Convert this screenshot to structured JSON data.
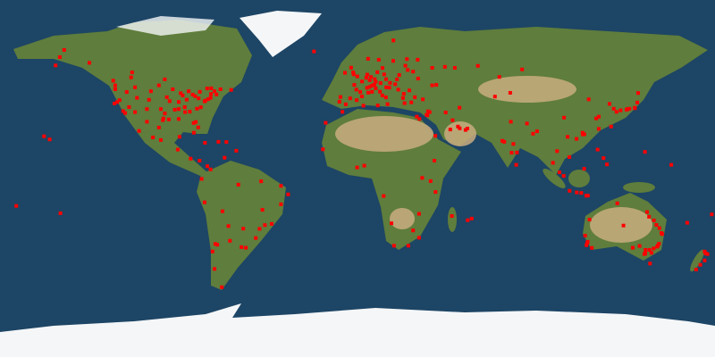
{
  "map": {
    "projection": "equirectangular",
    "colors": {
      "ocean": "#1d4565",
      "land": "#5f7d3c",
      "desert": "#c9ad7f",
      "ice": "#f4f6f8",
      "marker": "#ff0000"
    },
    "markers": [
      [
        -122,
        47
      ],
      [
        -122,
        45
      ],
      [
        -122.4,
        37.8
      ],
      [
        -121,
        38.5
      ],
      [
        -118,
        34
      ],
      [
        -117,
        33
      ],
      [
        -112,
        33.5
      ],
      [
        -111,
        40.7
      ],
      [
        -105,
        39.7
      ],
      [
        -106,
        35
      ],
      [
        -97,
        32.8
      ],
      [
        -95,
        29.8
      ],
      [
        -98,
        29.4
      ],
      [
        -97.7,
        30.3
      ],
      [
        -96,
        41
      ],
      [
        -94.6,
        39
      ],
      [
        -93,
        45
      ],
      [
        -90,
        38.6
      ],
      [
        -88,
        41.9
      ],
      [
        -87,
        36
      ],
      [
        -86,
        39.8
      ],
      [
        -84.4,
        33.7
      ],
      [
        -83,
        42.3
      ],
      [
        -81.7,
        41.5
      ],
      [
        -80,
        40.4
      ],
      [
        -80.2,
        25.8
      ],
      [
        -82.5,
        28
      ],
      [
        -81.4,
        28.5
      ],
      [
        -77,
        38.9
      ],
      [
        -76.6,
        39.3
      ],
      [
        -75.2,
        40
      ],
      [
        -74,
        40.7
      ],
      [
        -71,
        42.4
      ],
      [
        -73.8,
        42.6
      ],
      [
        -78.9,
        35.9
      ],
      [
        -80.8,
        35.2
      ],
      [
        -90,
        30
      ],
      [
        -90,
        35
      ],
      [
        -115,
        36
      ],
      [
        -119.8,
        39.5
      ],
      [
        -116.2,
        43.6
      ],
      [
        -112,
        46
      ],
      [
        -104,
        44
      ],
      [
        -100,
        47
      ],
      [
        -99,
        35
      ],
      [
        -92,
        34.7
      ],
      [
        -86.8,
        33.5
      ],
      [
        -85,
        44
      ],
      [
        -89,
        43
      ],
      [
        -72,
        44
      ],
      [
        -69,
        45
      ],
      [
        -79.4,
        43.7
      ],
      [
        -73.6,
        45.5
      ],
      [
        -123,
        49.3
      ],
      [
        -114,
        51
      ],
      [
        -113.5,
        53.5
      ],
      [
        -97,
        50
      ],
      [
        -75.7,
        45.4
      ],
      [
        -63.6,
        44.7
      ],
      [
        -100,
        25.7
      ],
      [
        -99,
        19.4
      ],
      [
        -103,
        20.7
      ],
      [
        -110,
        24
      ],
      [
        -106,
        28.6
      ],
      [
        -89.6,
        21
      ],
      [
        -157.8,
        21.3
      ],
      [
        -155,
        19.7
      ],
      [
        -149.9,
        61.2
      ],
      [
        -147.7,
        64.8
      ],
      [
        -135,
        58.3
      ],
      [
        -152,
        57
      ],
      [
        -82.4,
        23.1
      ],
      [
        -66,
        18.4
      ],
      [
        -70,
        18.5
      ],
      [
        -76.8,
        18
      ],
      [
        -90.5,
        14.6
      ],
      [
        -84,
        10
      ],
      [
        -79.5,
        9
      ],
      [
        -61,
        14
      ],
      [
        -74,
        4.6
      ],
      [
        -75.6,
        6.2
      ],
      [
        -66.9,
        10.5
      ],
      [
        -78.5,
        -0.2
      ],
      [
        -77,
        -12
      ],
      [
        -68,
        -16.5
      ],
      [
        -70.6,
        -33.4
      ],
      [
        -71.6,
        -33
      ],
      [
        -73,
        -36.8
      ],
      [
        -58.4,
        -34.6
      ],
      [
        -56.2,
        -34.9
      ],
      [
        -64.2,
        -31.4
      ],
      [
        -46.6,
        -23.5
      ],
      [
        -43.2,
        -22.9
      ],
      [
        -47.9,
        -15.8
      ],
      [
        -49.3,
        -25.4
      ],
      [
        -51.2,
        -30
      ],
      [
        -38.5,
        -13
      ],
      [
        -34.9,
        -8
      ],
      [
        -38.5,
        -3.7
      ],
      [
        -60,
        -3.1
      ],
      [
        -48.5,
        -1.4
      ],
      [
        -68.3,
        -54.8
      ],
      [
        -72,
        -45.6
      ],
      [
        -57.5,
        -25.3
      ],
      [
        -65,
        -24
      ],
      [
        -0.1,
        51.5
      ],
      [
        -2.2,
        53.5
      ],
      [
        -3.2,
        55.9
      ],
      [
        -6.3,
        53.3
      ],
      [
        -1.9,
        52.5
      ],
      [
        2.3,
        48.9
      ],
      [
        4.8,
        45.7
      ],
      [
        5.4,
        43.3
      ],
      [
        -1.6,
        47.2
      ],
      [
        -0.6,
        44.8
      ],
      [
        1.4,
        43.6
      ],
      [
        7.3,
        43.7
      ],
      [
        -3.7,
        40.4
      ],
      [
        2.2,
        41.4
      ],
      [
        -0.4,
        39.5
      ],
      [
        -5.9,
        37.4
      ],
      [
        -9.1,
        38.7
      ],
      [
        -8.6,
        41.1
      ],
      [
        4.9,
        52.4
      ],
      [
        4.4,
        50.8
      ],
      [
        6.1,
        49.6
      ],
      [
        6.8,
        51.2
      ],
      [
        8.7,
        50.1
      ],
      [
        11.6,
        48.1
      ],
      [
        13.4,
        52.5
      ],
      [
        10,
        53.6
      ],
      [
        9.2,
        48.8
      ],
      [
        8.5,
        47.4
      ],
      [
        6.1,
        46.2
      ],
      [
        7.4,
        46.9
      ],
      [
        16.4,
        48.2
      ],
      [
        14.4,
        50.1
      ],
      [
        19,
        47.5
      ],
      [
        21,
        52.2
      ],
      [
        19.9,
        50
      ],
      [
        12.5,
        41.9
      ],
      [
        9.2,
        45.5
      ],
      [
        11.3,
        43.8
      ],
      [
        14.3,
        40.9
      ],
      [
        15.1,
        37.5
      ],
      [
        23.7,
        38
      ],
      [
        22.9,
        40.6
      ],
      [
        26.1,
        44.4
      ],
      [
        23.3,
        42.7
      ],
      [
        20.5,
        44.8
      ],
      [
        16,
        45.8
      ],
      [
        14.5,
        46
      ],
      [
        12.6,
        55.7
      ],
      [
        10.7,
        59.9
      ],
      [
        18,
        59.3
      ],
      [
        24.9,
        60.2
      ],
      [
        24.1,
        56.9
      ],
      [
        25.3,
        54.7
      ],
      [
        30.5,
        50.4
      ],
      [
        37.6,
        55.8
      ],
      [
        30.3,
        59.9
      ],
      [
        28,
        53.9
      ],
      [
        28.9,
        41
      ],
      [
        32.9,
        39.9
      ],
      [
        27.1,
        38.4
      ],
      [
        -21.9,
        64.1
      ],
      [
        5.3,
        60.4
      ],
      [
        18.1,
        69.6
      ],
      [
        44,
        56.3
      ],
      [
        49,
        55.8
      ],
      [
        39.7,
        47.2
      ],
      [
        37.6,
        47
      ],
      [
        -16,
        28.1
      ],
      [
        35.2,
        31.8
      ],
      [
        34.8,
        32.1
      ],
      [
        35.5,
        33.9
      ],
      [
        36.3,
        33.5
      ],
      [
        31.2,
        30
      ],
      [
        29.9,
        31.2
      ],
      [
        55.3,
        25.2
      ],
      [
        54.4,
        24.5
      ],
      [
        51.5,
        25.3
      ],
      [
        50.6,
        26.2
      ],
      [
        47.9,
        29.4
      ],
      [
        46.7,
        24.7
      ],
      [
        39.2,
        21.5
      ],
      [
        51.4,
        35.7
      ],
      [
        44.4,
        33.3
      ],
      [
        -7.6,
        33.6
      ],
      [
        3,
        36.7
      ],
      [
        10.2,
        36.8
      ],
      [
        -17.4,
        14.7
      ],
      [
        3.4,
        6.5
      ],
      [
        -0.2,
        5.6
      ],
      [
        36.8,
        -1.3
      ],
      [
        39.3,
        -6.8
      ],
      [
        32.6,
        0.3
      ],
      [
        38.7,
        9
      ],
      [
        18.4,
        -33.9
      ],
      [
        28,
        -26.2
      ],
      [
        31,
        -29.9
      ],
      [
        25.6,
        -33.9
      ],
      [
        47.5,
        -18.9
      ],
      [
        57.5,
        -20.2
      ],
      [
        55.5,
        -21
      ],
      [
        17.1,
        -22.6
      ],
      [
        31,
        -17.8
      ],
      [
        13.2,
        -8.8
      ],
      [
        72.9,
        19
      ],
      [
        77.2,
        28.6
      ],
      [
        77.6,
        13
      ],
      [
        80.3,
        13.1
      ],
      [
        88.4,
        22.6
      ],
      [
        78.5,
        17.4
      ],
      [
        73.9,
        18.5
      ],
      [
        79.9,
        6.9
      ],
      [
        85.3,
        27.7
      ],
      [
        90.4,
        23.8
      ],
      [
        100.5,
        13.8
      ],
      [
        98.4,
        7.9
      ],
      [
        101.7,
        3.1
      ],
      [
        103.8,
        1.3
      ],
      [
        106.8,
        -6.2
      ],
      [
        115.2,
        -8.7
      ],
      [
        110.4,
        -7
      ],
      [
        112.7,
        -7.3
      ],
      [
        106.7,
        10.8
      ],
      [
        105.8,
        21
      ],
      [
        120.9,
        14.6
      ],
      [
        123.9,
        10.3
      ],
      [
        114.2,
        22.3
      ],
      [
        113.3,
        23.1
      ],
      [
        121.5,
        31.2
      ],
      [
        116.4,
        39.9
      ],
      [
        120.2,
        30.3
      ],
      [
        121.5,
        25
      ],
      [
        126.9,
        37.6
      ],
      [
        129,
        35.2
      ],
      [
        139.7,
        35.7
      ],
      [
        135.5,
        34.7
      ],
      [
        136.9,
        35.2
      ],
      [
        130.4,
        33.6
      ],
      [
        141.3,
        43.1
      ],
      [
        140.9,
        38.3
      ],
      [
        132.5,
        34.4
      ],
      [
        127.7,
        26.2
      ],
      [
        139.6,
        35.4
      ],
      [
        135.8,
        35
      ],
      [
        104,
        30.7
      ],
      [
        69.2,
        41.3
      ],
      [
        76.9,
        43.2
      ],
      [
        71.4,
        51.2
      ],
      [
        82.9,
        55
      ],
      [
        60.6,
        56.8
      ],
      [
        113.5,
        22.2
      ],
      [
        110.3,
        20
      ],
      [
        116,
        -8.6
      ],
      [
        125.6,
        7.1
      ],
      [
        114.1,
        4.9
      ],
      [
        144.7,
        13.4
      ],
      [
        158,
        6.9
      ],
      [
        166,
        -22.3
      ],
      [
        178.4,
        -18.1
      ],
      [
        151.2,
        -33.9
      ],
      [
        150.9,
        -34.4
      ],
      [
        151.8,
        -32.9
      ],
      [
        153,
        -27.5
      ],
      [
        153.4,
        -28
      ],
      [
        145.8,
        -16.9
      ],
      [
        146.8,
        -19.3
      ],
      [
        149.1,
        -35.3
      ],
      [
        144.9,
        -37.8
      ],
      [
        144.4,
        -38.1
      ],
      [
        138.6,
        -34.9
      ],
      [
        147.3,
        -42.9
      ],
      [
        115.9,
        -31.9
      ],
      [
        115.7,
        -32.5
      ],
      [
        130.8,
        -12.5
      ],
      [
        133.9,
        -23.7
      ],
      [
        149.2,
        -21.1
      ],
      [
        150.5,
        -23.4
      ],
      [
        152,
        -25
      ],
      [
        147,
        -36
      ],
      [
        148,
        -37.5
      ],
      [
        145,
        -36
      ],
      [
        142,
        -34
      ],
      [
        115.3,
        -33.6
      ],
      [
        118,
        -35
      ],
      [
        114.6,
        -28.8
      ],
      [
        116.8,
        -20.7
      ],
      [
        174.8,
        -36.8
      ],
      [
        174.8,
        -41.3
      ],
      [
        172.6,
        -43.5
      ],
      [
        170.5,
        -45.9
      ],
      [
        175.3,
        -37.8
      ],
      [
        176.2,
        -38.1
      ],
      [
        -149.6,
        -17.5
      ],
      [
        -171.8,
        -13.8
      ]
    ]
  }
}
